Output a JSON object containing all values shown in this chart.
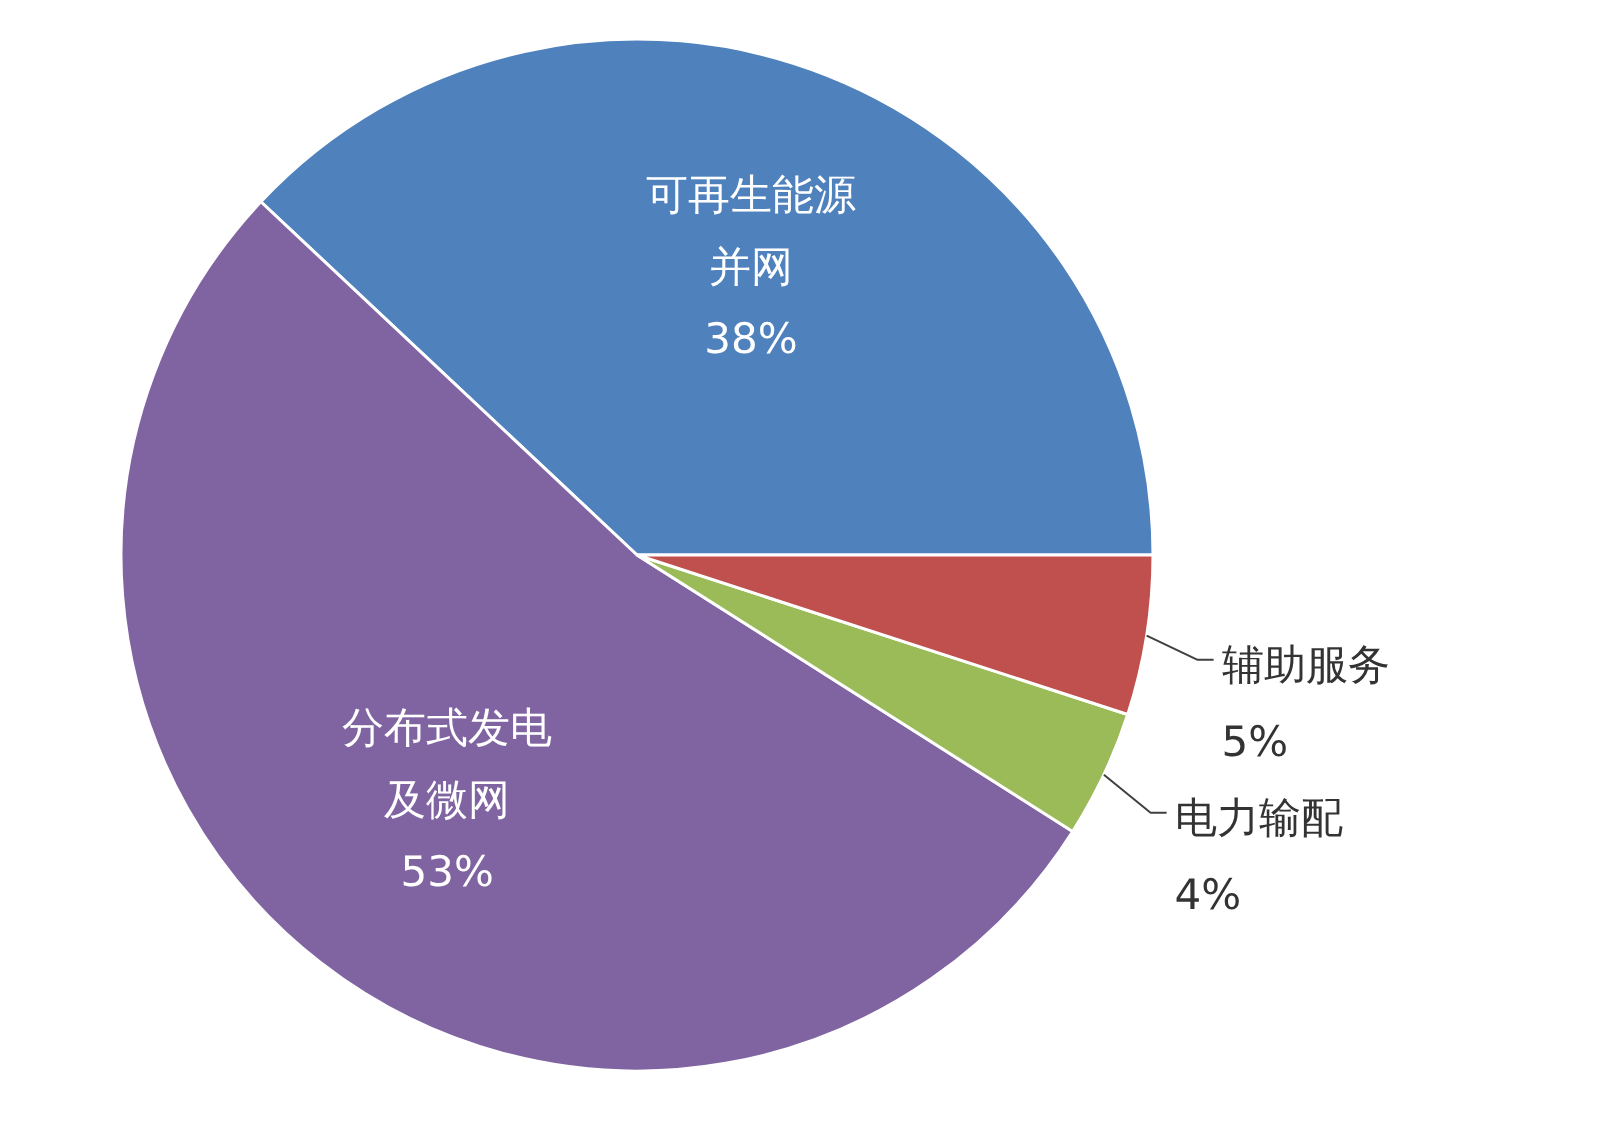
{
  "chart_data": {
    "type": "pie",
    "categories": [
      "可再生能源并网",
      "分布式发电及微网",
      "电力输配",
      "辅助服务"
    ],
    "values": [
      38,
      53,
      4,
      5
    ],
    "value_labels": [
      "38%",
      "53%",
      "4%",
      "5%"
    ],
    "colors": [
      "#4f81bd",
      "#8064a2",
      "#9bbb59",
      "#c0504d"
    ]
  }
}
